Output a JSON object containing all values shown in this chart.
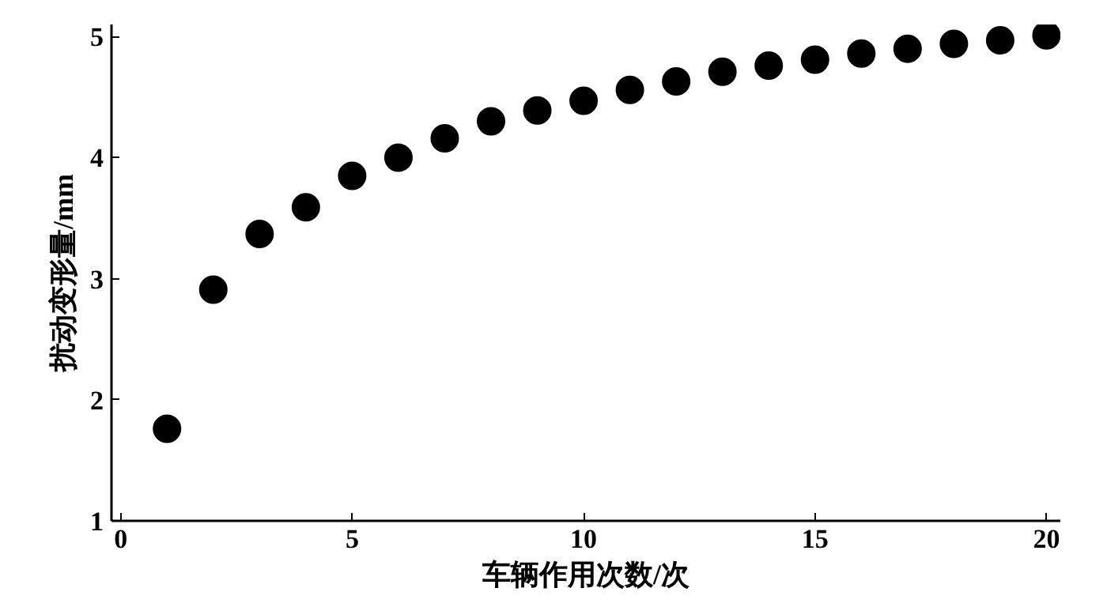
{
  "chart_data": {
    "type": "scatter",
    "xlabel": "车辆作用次数/次",
    "ylabel": "扰动变形量/mm",
    "x": [
      1,
      2,
      3,
      4,
      5,
      6,
      7,
      8,
      9,
      10,
      11,
      12,
      13,
      14,
      15,
      16,
      17,
      18,
      19,
      20
    ],
    "series": [
      {
        "color": "#000000",
        "values": [
          1.76,
          2.91,
          3.37,
          3.59,
          3.85,
          4.0,
          4.16,
          4.3,
          4.39,
          4.47,
          4.56,
          4.63,
          4.71,
          4.76,
          4.81,
          4.86,
          4.9,
          4.94,
          4.97,
          5.01
        ]
      }
    ],
    "xlim": [
      -0.2,
      20.3
    ],
    "ylim": [
      1,
      5.1
    ],
    "xticks": [
      0,
      5,
      10,
      15,
      20
    ],
    "yticks": [
      1,
      2,
      3,
      4,
      5
    ],
    "grid": false,
    "marker": "circle"
  }
}
